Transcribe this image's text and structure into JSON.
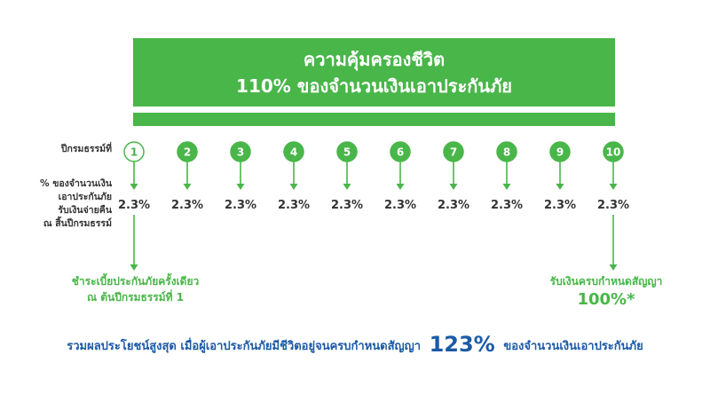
{
  "banner": {
    "line1": "ความคุ้มครองชีวิต",
    "line2": "110% ของจำนวนเงินเอาประกันภัย"
  },
  "labels": {
    "policy_year": "ปีกรมธรรม์ที่",
    "pct_lines": [
      "% ของจำนวนเงิน",
      "เอาประกันภัย",
      "รับเงินจ่ายคืน",
      "ณ สิ้นปีกรมธรรม์"
    ]
  },
  "years": [
    "1",
    "2",
    "3",
    "4",
    "5",
    "6",
    "7",
    "8",
    "9",
    "10"
  ],
  "payouts": [
    "2.3%",
    "2.3%",
    "2.3%",
    "2.3%",
    "2.3%",
    "2.3%",
    "2.3%",
    "2.3%",
    "2.3%",
    "2.3%"
  ],
  "notes": {
    "left_line1": "ชำระเบี้ยประกันภัยครั้งเดียว",
    "left_line2": "ณ ต้นปีกรมธรรม์ที่ 1",
    "right_line1": "รับเงินครบกำหนดสัญญา",
    "right_line2": "100%*"
  },
  "summary": {
    "pre": "รวมผลประโยชน์สูงสุด เมื่อผู้เอาประกันภัยมีชีวิตอยู่จนครบกำหนดสัญญา",
    "big": "123%",
    "post": "ของจำนวนเงินเอาประกันภัย"
  },
  "colors": {
    "green": "#49b649",
    "blue": "#1c5aa6",
    "text": "#333333"
  }
}
